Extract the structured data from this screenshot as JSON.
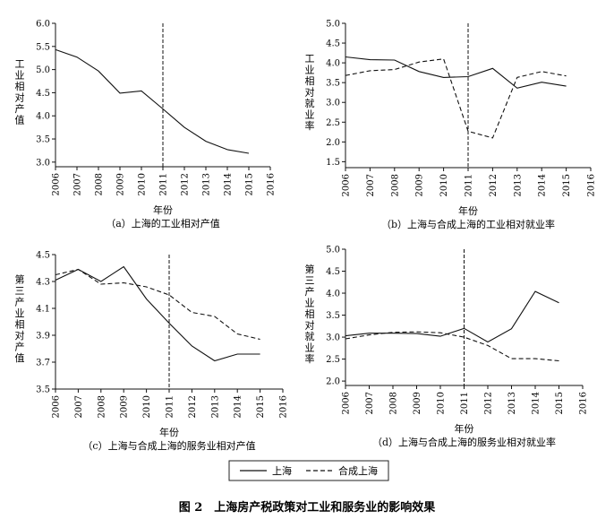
{
  "figure": {
    "title": "图 2　上海房产税政策对工业和服务业的影响效果",
    "legend": [
      {
        "label": "上海",
        "style": "solid"
      },
      {
        "label": "合成上海",
        "style": "dashed"
      }
    ]
  },
  "chart_data": [
    {
      "id": "a",
      "type": "line",
      "title": "（a）上海的工业相对产值",
      "xlabel": "年份",
      "ylabel": "工业相对产值",
      "xlim": [
        2006,
        2016
      ],
      "ylim": [
        2.9,
        6.0
      ],
      "yticks": [
        3.0,
        3.5,
        4.0,
        4.5,
        5.0,
        5.5,
        6.0
      ],
      "xticks": [
        2006,
        2007,
        2008,
        2009,
        2010,
        2011,
        2012,
        2013,
        2014,
        2015,
        2016
      ],
      "policy_year": 2011,
      "series": [
        {
          "name": "上海",
          "style": "solid",
          "x": [
            2006,
            2007,
            2008,
            2009,
            2010,
            2011,
            2012,
            2013,
            2014,
            2015
          ],
          "values": [
            5.43,
            5.27,
            4.97,
            4.49,
            4.54,
            4.15,
            3.75,
            3.45,
            3.27,
            3.19
          ]
        }
      ]
    },
    {
      "id": "b",
      "type": "line",
      "title": "（b）上海与合成上海的工业相对就业率",
      "xlabel": "年份",
      "ylabel": "工业相对就业率",
      "xlim": [
        2006,
        2016
      ],
      "ylim": [
        1.35,
        5.0
      ],
      "yticks": [
        1.5,
        2.0,
        2.5,
        3.0,
        3.5,
        4.0,
        4.5,
        5.0
      ],
      "xticks": [
        2006,
        2007,
        2008,
        2009,
        2010,
        2011,
        2012,
        2013,
        2014,
        2015,
        2016
      ],
      "policy_year": 2011,
      "series": [
        {
          "name": "上海",
          "style": "solid",
          "x": [
            2006,
            2007,
            2008,
            2009,
            2010,
            2011,
            2012,
            2013,
            2014,
            2015
          ],
          "values": [
            4.15,
            4.08,
            4.07,
            3.78,
            3.63,
            3.65,
            3.86,
            3.36,
            3.51,
            3.41
          ]
        },
        {
          "name": "合成上海",
          "style": "dashed",
          "x": [
            2006,
            2007,
            2008,
            2009,
            2010,
            2011,
            2012,
            2013,
            2014,
            2015
          ],
          "values": [
            3.68,
            3.8,
            3.83,
            4.02,
            4.1,
            2.27,
            2.1,
            3.63,
            3.78,
            3.67
          ]
        }
      ]
    },
    {
      "id": "c",
      "type": "line",
      "title": "（c）上海与合成上海的服务业相对产值",
      "xlabel": "年份",
      "ylabel": "第三产业相对产值",
      "xlim": [
        2006,
        2016
      ],
      "ylim": [
        3.5,
        4.5
      ],
      "yticks": [
        3.5,
        3.7,
        3.9,
        4.1,
        4.3,
        4.5
      ],
      "xticks": [
        2006,
        2007,
        2008,
        2009,
        2010,
        2011,
        2012,
        2013,
        2014,
        2015,
        2016
      ],
      "policy_year": 2011,
      "series": [
        {
          "name": "上海",
          "style": "solid",
          "x": [
            2006,
            2007,
            2008,
            2009,
            2010,
            2011,
            2012,
            2013,
            2014,
            2015
          ],
          "values": [
            4.31,
            4.39,
            4.3,
            4.41,
            4.17,
            3.99,
            3.82,
            3.71,
            3.76,
            3.76
          ]
        },
        {
          "name": "合成上海",
          "style": "dashed",
          "x": [
            2006,
            2007,
            2008,
            2009,
            2010,
            2011,
            2012,
            2013,
            2014,
            2015
          ],
          "values": [
            4.35,
            4.39,
            4.28,
            4.29,
            4.26,
            4.2,
            4.07,
            4.04,
            3.91,
            3.87
          ]
        }
      ]
    },
    {
      "id": "d",
      "type": "line",
      "title": "（d）上海与合成上海的服务业相对就业率",
      "xlabel": "年份",
      "ylabel": "第三产业相对就业率",
      "xlim": [
        2006,
        2016
      ],
      "ylim": [
        1.9,
        5.0
      ],
      "yticks": [
        2.0,
        2.5,
        3.0,
        3.5,
        4.0,
        4.5,
        5.0
      ],
      "xticks": [
        2006,
        2007,
        2008,
        2009,
        2010,
        2011,
        2012,
        2013,
        2014,
        2015,
        2016
      ],
      "policy_year": 2011,
      "series": [
        {
          "name": "上海",
          "style": "solid",
          "x": [
            2006,
            2007,
            2008,
            2009,
            2010,
            2011,
            2012,
            2013,
            2014,
            2015
          ],
          "values": [
            3.03,
            3.09,
            3.09,
            3.08,
            3.02,
            3.2,
            2.89,
            3.19,
            4.04,
            3.78
          ]
        },
        {
          "name": "合成上海",
          "style": "dashed",
          "x": [
            2006,
            2007,
            2008,
            2009,
            2010,
            2011,
            2012,
            2013,
            2014,
            2015
          ],
          "values": [
            2.96,
            3.05,
            3.11,
            3.12,
            3.1,
            3.0,
            2.81,
            2.51,
            2.51,
            2.46
          ]
        }
      ]
    }
  ]
}
